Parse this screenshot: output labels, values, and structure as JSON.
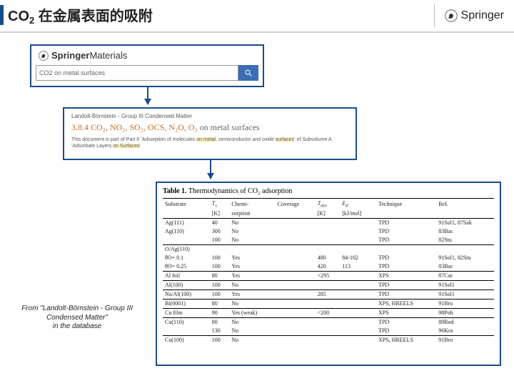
{
  "header": {
    "title_html": "CO<sub>2</sub> 在金属表面的吸附",
    "publisher": "Springer"
  },
  "search_panel": {
    "brand_prefix": "Springer",
    "brand_suffix": "Materials",
    "query": "CO2 on metal surfaces"
  },
  "doc_panel": {
    "breadcrumb": "Landolt-Börnstein - Group III Condensed Matter",
    "title_prefix": "3.8.4 CO₂, NO₂, SO₂, OCS, N₂O, O₃",
    "title_suffix": " on metal surfaces",
    "desc_a": "This document is part of Part 6 'Adsorption of molecules ",
    "desc_hl1": "on metal",
    "desc_b": ", semiconductor and oxide ",
    "desc_hl2": "surfaces",
    "desc_c": "' of Subvolume A 'Adsorbate Layers ",
    "desc_hl3": "on Surfaces",
    "desc_d": "'"
  },
  "table": {
    "caption_bold": "Table 1.",
    "caption_rest": " Thermodynamics of CO₂ adsorption",
    "columns_r1": [
      "Substrate",
      "T_s",
      "Chemi-",
      "Coverage",
      "T_des",
      "E_d",
      "Technique",
      "Ref."
    ],
    "columns_r2": [
      "",
      "[K]",
      "sorption",
      "",
      "[K]",
      "[kJ/mol]",
      "",
      ""
    ],
    "rows": [
      {
        "group": true,
        "cells": [
          "Ag(111)",
          "40",
          "No",
          "",
          "",
          "",
          "TPD",
          "91Sol1, 87Sak"
        ]
      },
      {
        "group": false,
        "cells": [
          "Ag(110)",
          "300",
          "No",
          "",
          "",
          "",
          "TPD",
          "83Bac"
        ]
      },
      {
        "group": false,
        "cells": [
          "",
          "100",
          "No",
          "",
          "",
          "",
          "TPD",
          "82Stu"
        ]
      },
      {
        "group": true,
        "cells": [
          "O/Ag(110)",
          "",
          "",
          "",
          "",
          "",
          "",
          ""
        ]
      },
      {
        "group": false,
        "cells": [
          "θO= 0.1",
          "100",
          "Yes",
          "",
          "480",
          "84-102",
          "TPD",
          "91Sol1, 82Stu"
        ]
      },
      {
        "group": false,
        "cells": [
          "θO= 0.25",
          "100",
          "Yes",
          "",
          "420",
          "113",
          "TPD",
          "83Bac"
        ]
      },
      {
        "group": true,
        "cells": [
          "Al foil",
          "80",
          "Yes",
          "",
          "<295",
          "",
          "XPS",
          "87Car"
        ]
      },
      {
        "group": true,
        "cells": [
          "Al(100)",
          "100",
          "No",
          "",
          "",
          "",
          "TPD",
          "91Sol1"
        ]
      },
      {
        "group": true,
        "cells": [
          "Na/Al(100)",
          "100",
          "Yes",
          "",
          "285",
          "",
          "TPD",
          "91Sol1"
        ]
      },
      {
        "group": true,
        "cells": [
          "Bi(0001)",
          "80",
          "No",
          "",
          "",
          "",
          "XPS, HREELS",
          "91Bro"
        ]
      },
      {
        "group": true,
        "cells": [
          "Cu film",
          "90",
          "Yes (weak)",
          "",
          "<200",
          "",
          "XPS",
          "98Poh"
        ]
      },
      {
        "group": true,
        "cells": [
          "Cu(110)",
          "80",
          "No",
          "",
          "",
          "",
          "TPD",
          "89Rod"
        ]
      },
      {
        "group": false,
        "cells": [
          "",
          "130",
          "No",
          "",
          "",
          "",
          "TPD",
          "96Kra"
        ]
      },
      {
        "group": true,
        "cells": [
          "Cu(100)",
          "100",
          "No",
          "",
          "",
          "",
          "XPS, HREELS",
          "91Bro"
        ]
      }
    ]
  },
  "citation": {
    "line1": "From \"Landolt-Börnstein - Group III",
    "line2": "Condensed Matter\"",
    "line3": "in the database"
  },
  "colors": {
    "accent": "#1a4b8c",
    "doc_title": "#c66b1f"
  }
}
